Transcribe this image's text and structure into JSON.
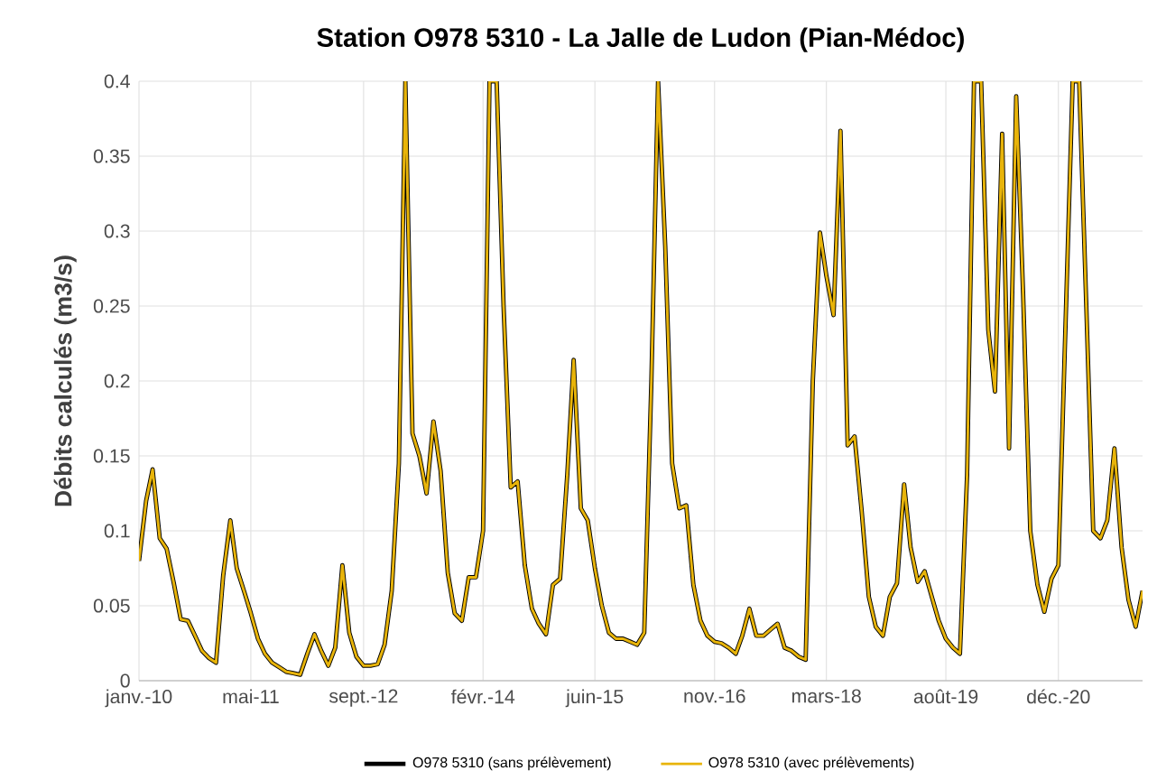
{
  "chart_data": {
    "type": "line",
    "title": "Station O978 5310 - La Jalle de Ludon (Pian-Médoc)",
    "ylabel": "Débits calculés (m3/s)",
    "x": [
      "2010-01",
      "2010-02",
      "2010-03",
      "2010-04",
      "2010-05",
      "2010-06",
      "2010-07",
      "2010-08",
      "2010-09",
      "2010-10",
      "2010-11",
      "2010-12",
      "2011-01",
      "2011-02",
      "2011-03",
      "2011-04",
      "2011-05",
      "2011-06",
      "2011-07",
      "2011-08",
      "2011-09",
      "2011-10",
      "2011-11",
      "2011-12",
      "2012-01",
      "2012-02",
      "2012-03",
      "2012-04",
      "2012-05",
      "2012-06",
      "2012-07",
      "2012-08",
      "2012-09",
      "2012-10",
      "2012-11",
      "2012-12",
      "2013-01",
      "2013-02",
      "2013-03",
      "2013-04",
      "2013-05",
      "2013-06",
      "2013-07",
      "2013-08",
      "2013-09",
      "2013-10",
      "2013-11",
      "2013-12",
      "2014-01",
      "2014-02",
      "2014-03",
      "2014-04",
      "2014-05",
      "2014-06",
      "2014-07",
      "2014-08",
      "2014-09",
      "2014-10",
      "2014-11",
      "2014-12",
      "2015-01",
      "2015-02",
      "2015-03",
      "2015-04",
      "2015-05",
      "2015-06",
      "2015-07",
      "2015-08",
      "2015-09",
      "2015-10",
      "2015-11",
      "2015-12",
      "2016-01",
      "2016-02",
      "2016-03",
      "2016-04",
      "2016-05",
      "2016-06",
      "2016-07",
      "2016-08",
      "2016-09",
      "2016-10",
      "2016-11",
      "2016-12",
      "2017-01",
      "2017-02",
      "2017-03",
      "2017-04",
      "2017-05",
      "2017-06",
      "2017-07",
      "2017-08",
      "2017-09",
      "2017-10",
      "2017-11",
      "2017-12",
      "2018-01",
      "2018-02",
      "2018-03",
      "2018-04",
      "2018-05",
      "2018-06",
      "2018-07",
      "2018-08",
      "2018-09",
      "2018-10",
      "2018-11",
      "2018-12",
      "2019-01",
      "2019-02",
      "2019-03",
      "2019-04",
      "2019-05",
      "2019-06",
      "2019-07",
      "2019-08",
      "2019-09",
      "2019-10",
      "2019-11",
      "2019-12",
      "2020-01",
      "2020-02",
      "2020-03",
      "2020-04",
      "2020-05",
      "2020-06",
      "2020-07",
      "2020-08",
      "2020-09",
      "2020-10",
      "2020-11",
      "2020-12",
      "2021-01",
      "2021-02",
      "2021-03",
      "2021-04",
      "2021-05",
      "2021-06",
      "2021-07",
      "2021-08",
      "2021-09",
      "2021-10",
      "2021-11",
      "2021-12"
    ],
    "series": [
      {
        "name": "O978 5310 (sans prélèvement)",
        "color": "#000000",
        "values": [
          0.08,
          0.12,
          0.141,
          0.095,
          0.088,
          0.065,
          0.041,
          0.04,
          0.03,
          0.02,
          0.015,
          0.012,
          0.07,
          0.107,
          0.075,
          0.06,
          0.045,
          0.028,
          0.018,
          0.012,
          0.009,
          0.006,
          0.005,
          0.004,
          0.018,
          0.031,
          0.02,
          0.01,
          0.022,
          0.077,
          0.032,
          0.016,
          0.01,
          0.01,
          0.011,
          0.024,
          0.06,
          0.145,
          0.4,
          0.165,
          0.15,
          0.125,
          0.173,
          0.14,
          0.072,
          0.045,
          0.04,
          0.069,
          0.069,
          0.1,
          0.4,
          0.4,
          0.25,
          0.129,
          0.133,
          0.077,
          0.048,
          0.038,
          0.031,
          0.064,
          0.068,
          0.137,
          0.214,
          0.115,
          0.107,
          0.075,
          0.05,
          0.032,
          0.028,
          0.028,
          0.026,
          0.024,
          0.032,
          0.2,
          0.4,
          0.29,
          0.145,
          0.115,
          0.117,
          0.064,
          0.04,
          0.03,
          0.026,
          0.025,
          0.022,
          0.018,
          0.03,
          0.048,
          0.03,
          0.03,
          0.034,
          0.038,
          0.022,
          0.02,
          0.016,
          0.014,
          0.2,
          0.299,
          0.27,
          0.244,
          0.367,
          0.157,
          0.163,
          0.113,
          0.056,
          0.036,
          0.03,
          0.056,
          0.065,
          0.131,
          0.089,
          0.066,
          0.073,
          0.056,
          0.04,
          0.028,
          0.022,
          0.018,
          0.137,
          0.4,
          0.4,
          0.234,
          0.193,
          0.365,
          0.155,
          0.39,
          0.258,
          0.1,
          0.064,
          0.046,
          0.068,
          0.077,
          0.238,
          0.4,
          0.4,
          0.25,
          0.1,
          0.095,
          0.107,
          0.155,
          0.089,
          0.054,
          0.036,
          0.06
        ]
      },
      {
        "name": "O978 5310 (avec prélèvements)",
        "color": "#e8b40a",
        "values": [
          0.08,
          0.12,
          0.141,
          0.095,
          0.088,
          0.065,
          0.041,
          0.04,
          0.03,
          0.02,
          0.015,
          0.012,
          0.07,
          0.107,
          0.075,
          0.06,
          0.045,
          0.028,
          0.018,
          0.012,
          0.009,
          0.006,
          0.005,
          0.004,
          0.018,
          0.031,
          0.02,
          0.01,
          0.022,
          0.077,
          0.032,
          0.016,
          0.01,
          0.01,
          0.011,
          0.024,
          0.06,
          0.145,
          0.4,
          0.165,
          0.15,
          0.125,
          0.173,
          0.14,
          0.072,
          0.045,
          0.04,
          0.069,
          0.069,
          0.1,
          0.4,
          0.4,
          0.25,
          0.129,
          0.133,
          0.077,
          0.048,
          0.038,
          0.031,
          0.064,
          0.068,
          0.137,
          0.214,
          0.115,
          0.107,
          0.075,
          0.05,
          0.032,
          0.028,
          0.028,
          0.026,
          0.024,
          0.032,
          0.2,
          0.4,
          0.29,
          0.145,
          0.115,
          0.117,
          0.064,
          0.04,
          0.03,
          0.026,
          0.025,
          0.022,
          0.018,
          0.03,
          0.048,
          0.03,
          0.03,
          0.034,
          0.038,
          0.022,
          0.02,
          0.016,
          0.014,
          0.2,
          0.299,
          0.27,
          0.244,
          0.367,
          0.157,
          0.163,
          0.113,
          0.056,
          0.036,
          0.03,
          0.056,
          0.065,
          0.131,
          0.089,
          0.066,
          0.073,
          0.056,
          0.04,
          0.028,
          0.022,
          0.018,
          0.137,
          0.4,
          0.4,
          0.234,
          0.193,
          0.365,
          0.155,
          0.39,
          0.258,
          0.1,
          0.064,
          0.046,
          0.068,
          0.077,
          0.238,
          0.4,
          0.4,
          0.25,
          0.1,
          0.095,
          0.107,
          0.155,
          0.089,
          0.054,
          0.036,
          0.06
        ]
      }
    ],
    "xlim": [
      "2010-01",
      "2021-12"
    ],
    "xticks": [
      {
        "value": "2010-01",
        "label": "janv.-10"
      },
      {
        "value": "2011-05",
        "label": "mai-11"
      },
      {
        "value": "2012-09",
        "label": "sept.-12"
      },
      {
        "value": "2014-02",
        "label": "févr.-14"
      },
      {
        "value": "2015-06",
        "label": "juin-15"
      },
      {
        "value": "2016-11",
        "label": "nov.-16"
      },
      {
        "value": "2018-03",
        "label": "mars-18"
      },
      {
        "value": "2019-08",
        "label": "août-19"
      },
      {
        "value": "2020-12",
        "label": "déc.-20"
      }
    ],
    "ylim": [
      0,
      0.4
    ],
    "yticks": [
      0,
      0.05,
      0.1,
      0.15,
      0.2,
      0.25,
      0.3,
      0.35,
      0.4
    ],
    "grid": true,
    "legend": "bottom",
    "marker": "none",
    "line_style": "solid"
  }
}
